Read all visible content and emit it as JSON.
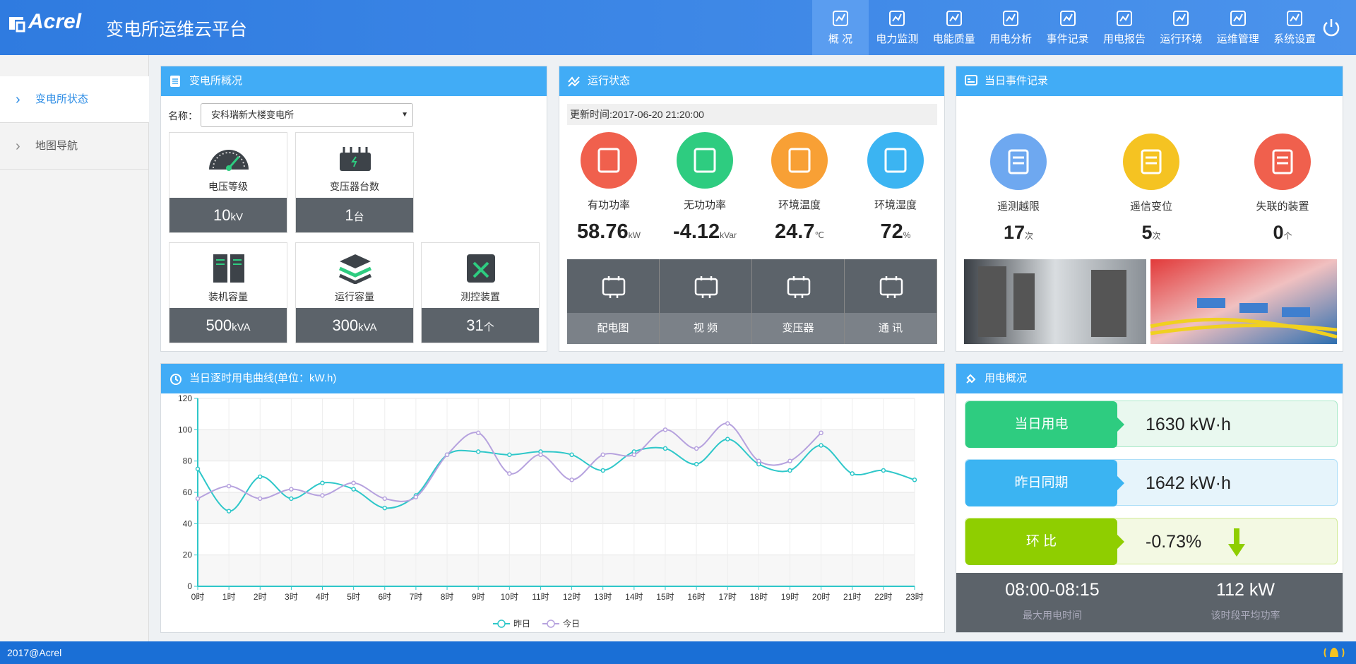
{
  "header": {
    "logo": "Acrel",
    "title": "变电所运维云平台",
    "nav": [
      "概 况",
      "电力监测",
      "电能质量",
      "用电分析",
      "事件记录",
      "用电报告",
      "运行环境",
      "运维管理",
      "系统设置"
    ]
  },
  "sidebar": {
    "items": [
      "变电所状态",
      "地图导航"
    ]
  },
  "overview": {
    "title": "变电所概况",
    "name_label": "名称：",
    "station": "安科瑞新大楼变电所",
    "cards": [
      {
        "label": "电压等级",
        "value": 10,
        "unit": "kV"
      },
      {
        "label": "变压器台数",
        "value": 1,
        "unit": "台"
      },
      {
        "label": "装机容量",
        "value": 500,
        "unit": "kVA"
      },
      {
        "label": "运行容量",
        "value": 300,
        "unit": "kVA"
      },
      {
        "label": "测控装置",
        "value": 31,
        "unit": "个"
      }
    ]
  },
  "status": {
    "title": "运行状态",
    "updated": "更新时间:2017-06-20 21:20:00",
    "metrics": [
      {
        "label": "有功功率",
        "value": 58.76,
        "unit": "kW"
      },
      {
        "label": "无功功率",
        "value": -4.12,
        "unit": "kVar"
      },
      {
        "label": "环境温度",
        "value": 24.7,
        "unit": "℃"
      },
      {
        "label": "环境湿度",
        "value": 72,
        "unit": "%"
      }
    ],
    "buttons": [
      "配电图",
      "视 频",
      "变压器",
      "通 讯"
    ]
  },
  "events": {
    "title": "当日事件记录",
    "items": [
      {
        "label": "遥测越限",
        "value": 17,
        "unit": "次"
      },
      {
        "label": "遥信变位",
        "value": 5,
        "unit": "次"
      },
      {
        "label": "失联的装置",
        "value": 0,
        "unit": "个"
      }
    ]
  },
  "chart_data": {
    "type": "line",
    "title": "当日逐时用电曲线(单位：kW.h)",
    "categories": [
      "0时",
      "1时",
      "2时",
      "3时",
      "4时",
      "5时",
      "6时",
      "7时",
      "8时",
      "9时",
      "10时",
      "11时",
      "12时",
      "13时",
      "14时",
      "15时",
      "16时",
      "17时",
      "18时",
      "19时",
      "20时",
      "21时",
      "22时",
      "23时"
    ],
    "series": [
      {
        "name": "昨日",
        "color": "#2ec7c9",
        "values": [
          75,
          48,
          70,
          56,
          66,
          62,
          50,
          58,
          84,
          86,
          84,
          86,
          84,
          74,
          86,
          88,
          78,
          94,
          78,
          74,
          90,
          72,
          74,
          68
        ]
      },
      {
        "name": "今日",
        "color": "#b6a2de",
        "values": [
          56,
          64,
          56,
          62,
          58,
          66,
          56,
          57,
          84,
          98,
          72,
          84,
          68,
          84,
          84,
          100,
          88,
          104,
          80,
          80,
          98,
          null,
          null,
          null
        ]
      }
    ],
    "ylim": [
      0,
      120
    ],
    "yticks": [
      0,
      20,
      40,
      60,
      80,
      100,
      120
    ],
    "grid": true,
    "legend": "bottom"
  },
  "usage": {
    "title": "用电概况",
    "rows": [
      {
        "label": "当日用电",
        "value": "1630 kW·h"
      },
      {
        "label": "昨日同期",
        "value": "1642 kW·h"
      },
      {
        "label": "环 比",
        "value": "-0.73%"
      }
    ],
    "peak_time": "08:00-08:15",
    "peak_time_label": "最大用电时间",
    "avg_power": "112 kW",
    "avg_power_label": "该时段平均功率"
  },
  "footer": "2017@Acrel"
}
